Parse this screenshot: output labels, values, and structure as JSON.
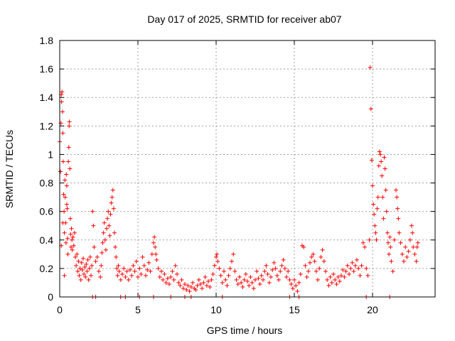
{
  "chart_data": {
    "type": "scatter",
    "title": "Day 017 of 2025, SRMTID for receiver ab07",
    "xlabel": "GPS time / hours",
    "ylabel": "SRMTID / TECUs",
    "xlim": [
      0,
      24
    ],
    "ylim": [
      0,
      1.8
    ],
    "xticks": [
      "0",
      "5",
      "10",
      "15",
      "20"
    ],
    "xtick_values": [
      0,
      5,
      10,
      15,
      20
    ],
    "yticks": [
      "0",
      "0.2",
      "0.4",
      "0.6",
      "0.8",
      "1",
      "1.2",
      "1.4",
      "1.6",
      "1.8"
    ],
    "ytick_values": [
      0,
      0.2,
      0.4,
      0.6,
      0.8,
      1.0,
      1.2,
      1.4,
      1.6,
      1.8
    ],
    "grid": true,
    "marker": "+",
    "color": "#ff0000",
    "series": [
      {
        "name": "SRMTID",
        "points": [
          [
            0.0,
            1.09
          ],
          [
            0.05,
            0.88
          ],
          [
            0.08,
            1.22
          ],
          [
            0.1,
            1.42
          ],
          [
            0.12,
            1.37
          ],
          [
            0.15,
            1.44
          ],
          [
            0.18,
            1.3
          ],
          [
            0.2,
            1.15
          ],
          [
            0.22,
            0.95
          ],
          [
            0.25,
            0.72
          ],
          [
            0.28,
            0.6
          ],
          [
            0.3,
            0.45
          ],
          [
            0.33,
            0.82
          ],
          [
            0.35,
            0.7
          ],
          [
            0.38,
            0.52
          ],
          [
            0.4,
            0.38
          ],
          [
            0.42,
            0.86
          ],
          [
            0.45,
            0.78
          ],
          [
            0.48,
            0.62
          ],
          [
            0.5,
            0.41
          ],
          [
            0.52,
            0.3
          ],
          [
            0.55,
            0.95
          ],
          [
            0.58,
            1.05
          ],
          [
            0.6,
            1.2
          ],
          [
            0.62,
            1.23
          ],
          [
            0.65,
            0.9
          ],
          [
            0.68,
            0.55
          ],
          [
            0.7,
            0.44
          ],
          [
            0.72,
            0.35
          ],
          [
            0.75,
            0.48
          ],
          [
            0.78,
            0.4
          ],
          [
            0.8,
            0.33
          ],
          [
            0.85,
            0.42
          ],
          [
            0.9,
            0.36
          ],
          [
            0.95,
            0.45
          ],
          [
            1.0,
            0.28
          ],
          [
            0.3,
            0.15
          ],
          [
            0.1,
            0.36
          ],
          [
            0.2,
            0.52
          ],
          [
            0.45,
            0.65
          ],
          [
            1.05,
            0.22
          ],
          [
            1.1,
            0.3
          ],
          [
            1.15,
            0.18
          ],
          [
            1.2,
            0.25
          ],
          [
            1.25,
            0.15
          ],
          [
            1.3,
            0.2
          ],
          [
            1.35,
            0.12
          ],
          [
            1.4,
            0.24
          ],
          [
            1.45,
            0.19
          ],
          [
            1.5,
            0.27
          ],
          [
            1.55,
            0.16
          ],
          [
            1.6,
            0.21
          ],
          [
            1.65,
            0.14
          ],
          [
            1.7,
            0.23
          ],
          [
            1.75,
            0.18
          ],
          [
            1.8,
            0.26
          ],
          [
            1.85,
            0.12
          ],
          [
            1.9,
            0.2
          ],
          [
            1.95,
            0.28
          ],
          [
            2.0,
            0.15
          ],
          [
            2.05,
            0.22
          ],
          [
            2.1,
            0.6
          ],
          [
            2.15,
            0.5
          ],
          [
            2.2,
            0.35
          ],
          [
            2.3,
            0.25
          ],
          [
            2.4,
            0.28
          ],
          [
            2.5,
            0.18
          ],
          [
            2.6,
            0.14
          ],
          [
            2.65,
            0.22
          ],
          [
            2.7,
            0.31
          ],
          [
            2.75,
            0.38
          ],
          [
            2.8,
            0.45
          ],
          [
            2.85,
            0.52
          ],
          [
            2.9,
            0.4
          ],
          [
            2.95,
            0.33
          ],
          [
            3.0,
            0.48
          ],
          [
            3.05,
            0.55
          ],
          [
            3.1,
            0.6
          ],
          [
            3.15,
            0.5
          ],
          [
            3.2,
            0.43
          ],
          [
            3.25,
            0.58
          ],
          [
            3.3,
            0.66
          ],
          [
            3.35,
            0.7
          ],
          [
            3.4,
            0.75
          ],
          [
            3.45,
            0.62
          ],
          [
            3.5,
            0.45
          ],
          [
            3.55,
            0.35
          ],
          [
            3.6,
            0.28
          ],
          [
            3.65,
            0.2
          ],
          [
            3.7,
            0.15
          ],
          [
            3.75,
            0.22
          ],
          [
            3.8,
            0.18
          ],
          [
            3.9,
            0.12
          ],
          [
            4.0,
            0.16
          ],
          [
            4.1,
            0.2
          ],
          [
            4.2,
            0.14
          ],
          [
            4.3,
            0.18
          ],
          [
            4.4,
            0.12
          ],
          [
            4.5,
            0.19
          ],
          [
            4.6,
            0.15
          ],
          [
            4.7,
            0.22
          ],
          [
            4.8,
            0.18
          ],
          [
            4.9,
            0.25
          ],
          [
            5.0,
            0.14
          ],
          [
            5.1,
            0.2
          ],
          [
            5.2,
            0.16
          ],
          [
            5.3,
            0.28
          ],
          [
            5.4,
            0.22
          ],
          [
            5.5,
            0.15
          ],
          [
            5.6,
            0.19
          ],
          [
            5.7,
            0.24
          ],
          [
            5.8,
            0.18
          ],
          [
            5.9,
            0.3
          ],
          [
            6.0,
            0.38
          ],
          [
            6.05,
            0.42
          ],
          [
            6.1,
            0.35
          ],
          [
            6.15,
            0.3
          ],
          [
            6.2,
            0.26
          ],
          [
            6.3,
            0.2
          ],
          [
            6.4,
            0.14
          ],
          [
            6.5,
            0.18
          ],
          [
            6.6,
            0.12
          ],
          [
            6.7,
            0.16
          ],
          [
            6.8,
            0.1
          ],
          [
            6.9,
            0.13
          ],
          [
            7.0,
            0.09
          ],
          [
            7.1,
            0.14
          ],
          [
            7.2,
            0.18
          ],
          [
            7.3,
            0.12
          ],
          [
            7.4,
            0.22
          ],
          [
            7.5,
            0.16
          ],
          [
            7.6,
            0.1
          ],
          [
            7.7,
            0.08
          ],
          [
            7.8,
            0.12
          ],
          [
            7.9,
            0.06
          ],
          [
            8.0,
            0.09
          ],
          [
            8.1,
            0.05
          ],
          [
            8.2,
            0.08
          ],
          [
            8.3,
            0.04
          ],
          [
            8.4,
            0.07
          ],
          [
            8.5,
            0.1
          ],
          [
            8.6,
            0.06
          ],
          [
            8.7,
            0.05
          ],
          [
            8.8,
            0.08
          ],
          [
            8.9,
            0.12
          ],
          [
            9.0,
            0.09
          ],
          [
            9.1,
            0.06
          ],
          [
            9.2,
            0.1
          ],
          [
            9.3,
            0.14
          ],
          [
            9.4,
            0.08
          ],
          [
            9.5,
            0.11
          ],
          [
            9.6,
            0.07
          ],
          [
            9.7,
            0.12
          ],
          [
            9.8,
            0.16
          ],
          [
            9.9,
            0.22
          ],
          [
            10.0,
            0.28
          ],
          [
            10.05,
            0.3
          ],
          [
            10.1,
            0.25
          ],
          [
            10.2,
            0.2
          ],
          [
            10.3,
            0.15
          ],
          [
            10.4,
            0.1
          ],
          [
            10.5,
            0.18
          ],
          [
            10.6,
            0.12
          ],
          [
            10.7,
            0.08
          ],
          [
            10.8,
            0.15
          ],
          [
            10.9,
            0.2
          ],
          [
            11.0,
            0.25
          ],
          [
            11.1,
            0.3
          ],
          [
            11.2,
            0.18
          ],
          [
            11.3,
            0.12
          ],
          [
            11.4,
            0.09
          ],
          [
            11.5,
            0.14
          ],
          [
            11.6,
            0.1
          ],
          [
            11.7,
            0.07
          ],
          [
            11.8,
            0.12
          ],
          [
            11.9,
            0.16
          ],
          [
            12.0,
            0.11
          ],
          [
            12.1,
            0.08
          ],
          [
            12.2,
            0.14
          ],
          [
            12.3,
            0.1
          ],
          [
            12.4,
            0.06
          ],
          [
            12.5,
            0.12
          ],
          [
            12.6,
            0.18
          ],
          [
            12.7,
            0.13
          ],
          [
            12.8,
            0.09
          ],
          [
            12.9,
            0.15
          ],
          [
            13.0,
            0.12
          ],
          [
            13.1,
            0.18
          ],
          [
            13.2,
            0.22
          ],
          [
            13.3,
            0.16
          ],
          [
            13.4,
            0.1
          ],
          [
            13.5,
            0.14
          ],
          [
            13.6,
            0.19
          ],
          [
            13.7,
            0.24
          ],
          [
            13.8,
            0.2
          ],
          [
            13.9,
            0.15
          ],
          [
            14.0,
            0.12
          ],
          [
            14.1,
            0.18
          ],
          [
            14.2,
            0.22
          ],
          [
            14.3,
            0.26
          ],
          [
            14.4,
            0.2
          ],
          [
            14.5,
            0.14
          ],
          [
            14.6,
            0.18
          ],
          [
            14.7,
            0.12
          ],
          [
            14.8,
            0.09
          ],
          [
            14.9,
            0.06
          ],
          [
            15.0,
            0.12
          ],
          [
            15.1,
            0.08
          ],
          [
            15.2,
            0.04
          ],
          [
            15.3,
            0.1
          ],
          [
            15.4,
            0.16
          ],
          [
            15.5,
            0.36
          ],
          [
            15.6,
            0.35
          ],
          [
            15.7,
            0.22
          ],
          [
            15.8,
            0.14
          ],
          [
            15.9,
            0.18
          ],
          [
            16.0,
            0.24
          ],
          [
            16.1,
            0.28
          ],
          [
            16.2,
            0.3
          ],
          [
            16.3,
            0.25
          ],
          [
            16.4,
            0.18
          ],
          [
            16.5,
            0.12
          ],
          [
            16.6,
            0.2
          ],
          [
            16.7,
            0.28
          ],
          [
            16.8,
            0.33
          ],
          [
            16.9,
            0.25
          ],
          [
            17.0,
            0.18
          ],
          [
            17.1,
            0.12
          ],
          [
            17.2,
            0.08
          ],
          [
            17.3,
            0.14
          ],
          [
            17.4,
            0.1
          ],
          [
            17.5,
            0.16
          ],
          [
            17.6,
            0.12
          ],
          [
            17.7,
            0.09
          ],
          [
            17.8,
            0.14
          ],
          [
            17.9,
            0.11
          ],
          [
            18.0,
            0.15
          ],
          [
            18.1,
            0.19
          ],
          [
            18.2,
            0.14
          ],
          [
            18.3,
            0.18
          ],
          [
            18.4,
            0.22
          ],
          [
            18.5,
            0.16
          ],
          [
            18.6,
            0.2
          ],
          [
            18.7,
            0.24
          ],
          [
            18.8,
            0.18
          ],
          [
            18.9,
            0.22
          ],
          [
            19.0,
            0.26
          ],
          [
            19.1,
            0.2
          ],
          [
            19.2,
            0.15
          ],
          [
            19.3,
            0.22
          ],
          [
            19.4,
            0.38
          ],
          [
            19.5,
            0.35
          ],
          [
            19.6,
            0.2
          ],
          [
            19.7,
            0.15
          ],
          [
            19.8,
            0.4
          ],
          [
            19.85,
            1.61
          ],
          [
            19.9,
            1.32
          ],
          [
            19.95,
            0.96
          ],
          [
            20.0,
            0.78
          ],
          [
            20.05,
            0.65
          ],
          [
            20.1,
            0.58
          ],
          [
            20.15,
            0.5
          ],
          [
            20.2,
            0.45
          ],
          [
            20.25,
            0.4
          ],
          [
            20.3,
            0.62
          ],
          [
            20.35,
            0.7
          ],
          [
            20.4,
            0.92
          ],
          [
            20.45,
            1.02
          ],
          [
            20.5,
            1.0
          ],
          [
            20.55,
            0.95
          ],
          [
            20.6,
            0.85
          ],
          [
            20.65,
            0.7
          ],
          [
            20.7,
            0.55
          ],
          [
            20.75,
            0.98
          ],
          [
            20.8,
            0.9
          ],
          [
            20.85,
            0.75
          ],
          [
            20.9,
            0.6
          ],
          [
            20.95,
            0.45
          ],
          [
            21.0,
            0.38
          ],
          [
            21.05,
            0.3
          ],
          [
            21.1,
            0.42
          ],
          [
            21.15,
            0.35
          ],
          [
            21.2,
            0.25
          ],
          [
            21.3,
            0.18
          ],
          [
            21.4,
            0.4
          ],
          [
            21.5,
            0.75
          ],
          [
            21.55,
            0.7
          ],
          [
            21.6,
            0.62
          ],
          [
            21.65,
            0.55
          ],
          [
            21.7,
            0.45
          ],
          [
            21.8,
            0.38
          ],
          [
            21.9,
            0.3
          ],
          [
            22.0,
            0.25
          ],
          [
            22.1,
            0.35
          ],
          [
            22.2,
            0.28
          ],
          [
            22.3,
            0.32
          ],
          [
            22.4,
            0.4
          ],
          [
            22.5,
            0.5
          ],
          [
            22.55,
            0.45
          ],
          [
            22.6,
            0.35
          ],
          [
            22.7,
            0.3
          ],
          [
            22.8,
            0.25
          ],
          [
            22.85,
            0.35
          ],
          [
            22.9,
            0.38
          ],
          [
            2.1,
            0.0
          ],
          [
            2.3,
            0.0
          ],
          [
            3.9,
            0.0
          ],
          [
            4.2,
            0.0
          ],
          [
            5.1,
            0.0
          ],
          [
            6.0,
            0.0
          ],
          [
            7.1,
            0.0
          ],
          [
            8.0,
            0.0
          ],
          [
            8.4,
            0.0
          ],
          [
            10.4,
            0.0
          ],
          [
            14.7,
            0.0
          ],
          [
            15.3,
            0.0
          ],
          [
            19.6,
            0.0
          ],
          [
            21.1,
            0.0
          ]
        ]
      }
    ]
  }
}
